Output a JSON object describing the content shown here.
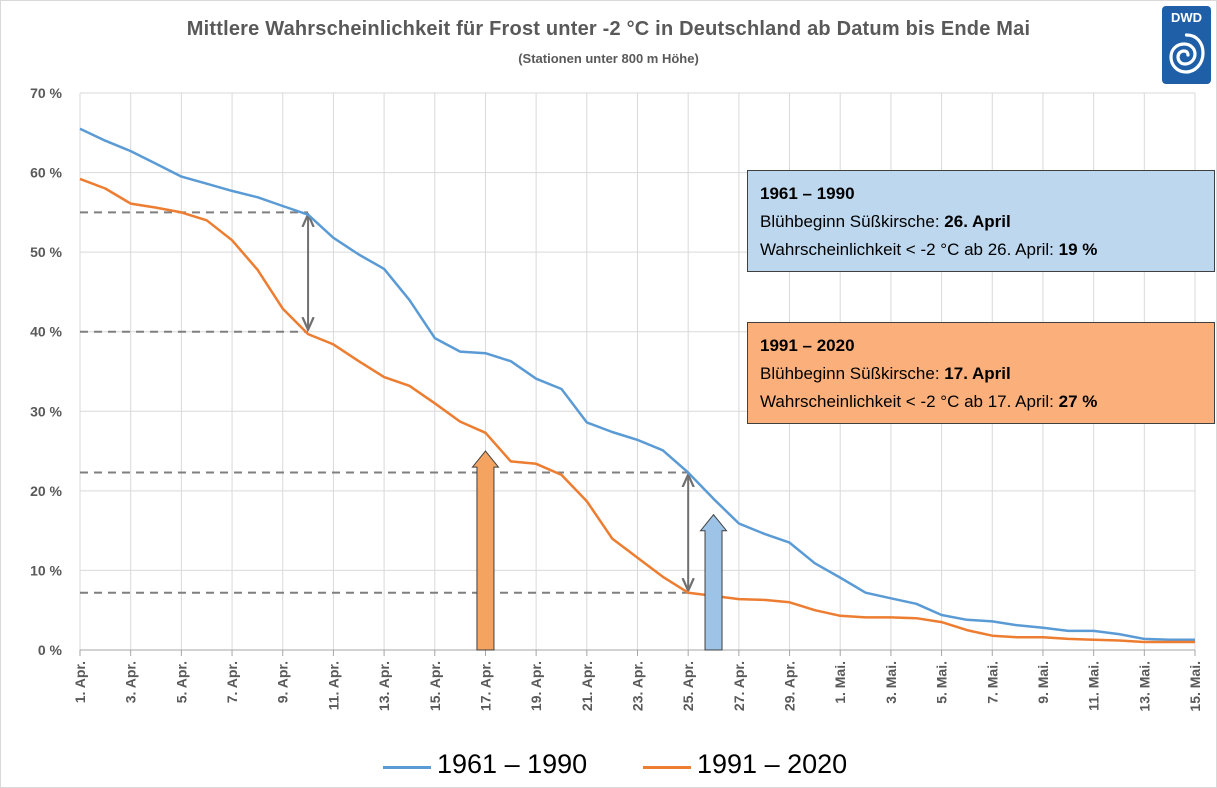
{
  "title": "Mittlere Wahrscheinlichkeit  für Frost unter -2 °C in Deutschland ab Datum bis Ende Mai",
  "subtitle": "(Stationen unter 800 m Höhe)",
  "logo": {
    "text": "DWD",
    "icon": "dwd-swirl-icon"
  },
  "box1": {
    "heading": "1961 – 1990",
    "line1_label": "Blühbeginn Süßkirsche: ",
    "line1_value": "26. April",
    "line2_label": "Wahrscheinlichkeit < -2 °C ab 26. April: ",
    "line2_value": "19 %"
  },
  "box2": {
    "heading": "1991 – 2020",
    "line1_label": "Blühbeginn Süßkirsche: ",
    "line1_value": "17. April",
    "line2_label": "Wahrscheinlichkeit < -2 °C ab 17. April: ",
    "line2_value": "27 %"
  },
  "colors": {
    "series1": "#5b9bd5",
    "series2": "#ed7d31",
    "arrow_blue": "#9dc3e6",
    "arrow_orange": "#f4a460",
    "grid": "#d9d9d9",
    "axis_text": "#595959"
  },
  "chart_data": {
    "type": "line",
    "title": "Mittlere Wahrscheinlichkeit  für Frost unter -2 °C in Deutschland ab Datum bis Ende Mai",
    "subtitle": "(Stationen unter 800 m Höhe)",
    "ylim": [
      0,
      70
    ],
    "yticks": [
      0,
      10,
      20,
      30,
      40,
      50,
      60,
      70
    ],
    "ytick_labels": [
      "0 %",
      "10 %",
      "20 %",
      "30 %",
      "40 %",
      "50 %",
      "60 %",
      "70 %"
    ],
    "x": [
      "1. Apr.",
      "2. Apr.",
      "3. Apr.",
      "4. Apr.",
      "5. Apr.",
      "6. Apr.",
      "7. Apr.",
      "8. Apr.",
      "9. Apr.",
      "10. Apr.",
      "11. Apr.",
      "12. Apr.",
      "13. Apr.",
      "14. Apr.",
      "15. Apr.",
      "16. Apr.",
      "17. Apr.",
      "18. Apr.",
      "19. Apr.",
      "20. Apr.",
      "21. Apr.",
      "22. Apr.",
      "23. Apr.",
      "24. Apr.",
      "25. Apr.",
      "26. Apr.",
      "27. Apr.",
      "28. Apr.",
      "29. Apr.",
      "30. Apr.",
      "1. Mai.",
      "2. Mai.",
      "3. Mai.",
      "4. Mai.",
      "5. Mai.",
      "6. Mai.",
      "7. Mai.",
      "8. Mai.",
      "9. Mai.",
      "10. Mai.",
      "11. Mai.",
      "12. Mai.",
      "13. Mai.",
      "14. Mai.",
      "15. Mai."
    ],
    "xtick_labels": [
      "1. Apr.",
      "3. Apr.",
      "5. Apr.",
      "7. Apr.",
      "9. Apr.",
      "11. Apr.",
      "13. Apr.",
      "15. Apr.",
      "17. Apr.",
      "19. Apr.",
      "21. Apr.",
      "23. Apr.",
      "25. Apr.",
      "27. Apr.",
      "29. Apr.",
      "1. Mai.",
      "3. Mai.",
      "5. Mai.",
      "7. Mai.",
      "9. Mai.",
      "11. Mai.",
      "13. Mai.",
      "15. Mai."
    ],
    "grid": true,
    "legend": "bottom",
    "series": [
      {
        "name": "1961 – 1990",
        "values": [
          65.5,
          64.0,
          62.7,
          61.1,
          59.5,
          58.6,
          57.7,
          56.9,
          55.8,
          54.7,
          51.8,
          49.7,
          47.9,
          44.0,
          39.2,
          37.5,
          37.3,
          36.3,
          34.1,
          32.8,
          28.6,
          27.4,
          26.4,
          25.1,
          22.3,
          19.0,
          15.9,
          14.6,
          13.5,
          10.9,
          9.1,
          7.2,
          6.5,
          5.8,
          4.4,
          3.8,
          3.6,
          3.1,
          2.8,
          2.4,
          2.4,
          2.0,
          1.4,
          1.3,
          1.3
        ]
      },
      {
        "name": "1991 – 2020",
        "values": [
          59.2,
          58.0,
          56.1,
          55.6,
          55.0,
          54.0,
          51.5,
          47.8,
          42.9,
          39.7,
          38.4,
          36.3,
          34.3,
          33.2,
          31.0,
          28.7,
          27.3,
          23.7,
          23.4,
          22.0,
          18.7,
          14.0,
          11.6,
          9.2,
          7.2,
          6.8,
          6.4,
          6.3,
          6.0,
          5.0,
          4.3,
          4.1,
          4.1,
          4.0,
          3.5,
          2.5,
          1.8,
          1.6,
          1.6,
          1.4,
          1.3,
          1.2,
          1.0,
          1.0,
          1.0
        ]
      }
    ],
    "annotations": [
      {
        "type": "dashed-line",
        "y": 55,
        "from": "1. Apr.",
        "to": "10. Apr."
      },
      {
        "type": "dashed-line",
        "y": 40,
        "from": "1. Apr.",
        "to": "10. Apr."
      },
      {
        "type": "dashed-line",
        "y": 22.3,
        "from": "1. Apr.",
        "to": "25. Apr."
      },
      {
        "type": "dashed-line",
        "y": 7.2,
        "from": "1. Apr.",
        "to": "25. Apr."
      },
      {
        "type": "double-arrow",
        "x": "10. Apr.",
        "y_from": 40,
        "y_to": 55
      },
      {
        "type": "double-arrow",
        "x": "25. Apr.",
        "y_from": 7.2,
        "y_to": 22.3
      },
      {
        "type": "block-arrow",
        "x": "17. Apr.",
        "y_top": 25,
        "color": "orange"
      },
      {
        "type": "block-arrow",
        "x": "26. Apr.",
        "y_top": 17,
        "color": "blue"
      }
    ]
  }
}
